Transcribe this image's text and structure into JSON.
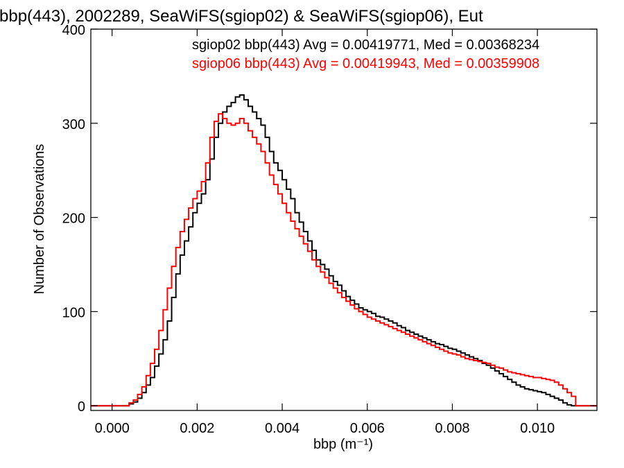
{
  "chart_data": {
    "type": "line",
    "title": "bbp(443), 2002289, SeaWiFS(sgiop02) & SeaWiFS(sgiop06), Eut",
    "xlabel": "bbp (m⁻¹)",
    "ylabel": "Number of Observations",
    "xlim": [
      -0.0005,
      0.0114
    ],
    "ylim": [
      -5,
      400
    ],
    "x_ticks": [
      0.0,
      0.002,
      0.004,
      0.006,
      0.008,
      0.01
    ],
    "x_tick_labels": [
      "0.000",
      "0.002",
      "0.004",
      "0.006",
      "0.008",
      "0.010"
    ],
    "y_ticks": [
      0,
      100,
      200,
      300,
      400
    ],
    "y_tick_labels": [
      "0",
      "100",
      "200",
      "300",
      "400"
    ],
    "grid": false,
    "annotations": [
      {
        "text": "sgiop02 bbp(443) Avg = 0.00419771, Med = 0.00368234",
        "color": "#000000"
      },
      {
        "text": "sgiop06 bbp(443) Avg = 0.00419943, Med = 0.00359908",
        "color": "#ff0000"
      }
    ],
    "series": [
      {
        "color": "#000000",
        "step": true,
        "points": [
          [
            -0.0005,
            0
          ],
          [
            0.0003,
            0
          ],
          [
            0.0004,
            2
          ],
          [
            0.0005,
            4
          ],
          [
            0.0006,
            8
          ],
          [
            0.0007,
            14
          ],
          [
            0.0008,
            22
          ],
          [
            0.0009,
            30
          ],
          [
            0.001,
            42
          ],
          [
            0.0011,
            55
          ],
          [
            0.0012,
            70
          ],
          [
            0.0013,
            90
          ],
          [
            0.0014,
            115
          ],
          [
            0.0015,
            140
          ],
          [
            0.0016,
            160
          ],
          [
            0.0017,
            175
          ],
          [
            0.0018,
            190
          ],
          [
            0.0019,
            205
          ],
          [
            0.002,
            215
          ],
          [
            0.0021,
            225
          ],
          [
            0.0022,
            240
          ],
          [
            0.0023,
            262
          ],
          [
            0.0024,
            285
          ],
          [
            0.0025,
            300
          ],
          [
            0.0026,
            312
          ],
          [
            0.0027,
            318
          ],
          [
            0.0028,
            322
          ],
          [
            0.0029,
            328
          ],
          [
            0.003,
            330
          ],
          [
            0.0031,
            325
          ],
          [
            0.0032,
            318
          ],
          [
            0.0033,
            312
          ],
          [
            0.0034,
            305
          ],
          [
            0.0035,
            298
          ],
          [
            0.0036,
            285
          ],
          [
            0.0037,
            270
          ],
          [
            0.0038,
            258
          ],
          [
            0.0039,
            250
          ],
          [
            0.004,
            240
          ],
          [
            0.0041,
            230
          ],
          [
            0.0042,
            220
          ],
          [
            0.0043,
            205
          ],
          [
            0.0044,
            195
          ],
          [
            0.0045,
            185
          ],
          [
            0.0046,
            175
          ],
          [
            0.0047,
            165
          ],
          [
            0.0048,
            155
          ],
          [
            0.0049,
            150
          ],
          [
            0.005,
            145
          ],
          [
            0.0051,
            138
          ],
          [
            0.0052,
            132
          ],
          [
            0.0053,
            128
          ],
          [
            0.0054,
            122
          ],
          [
            0.0055,
            116
          ],
          [
            0.0056,
            112
          ],
          [
            0.0057,
            108
          ],
          [
            0.0058,
            104
          ],
          [
            0.0059,
            102
          ],
          [
            0.006,
            100
          ],
          [
            0.0061,
            98
          ],
          [
            0.0062,
            95
          ],
          [
            0.0063,
            94
          ],
          [
            0.0064,
            92
          ],
          [
            0.0065,
            90
          ],
          [
            0.0066,
            88
          ],
          [
            0.0067,
            85
          ],
          [
            0.0068,
            83
          ],
          [
            0.0069,
            80
          ],
          [
            0.007,
            78
          ],
          [
            0.0071,
            76
          ],
          [
            0.0072,
            74
          ],
          [
            0.0073,
            72
          ],
          [
            0.0074,
            70
          ],
          [
            0.0075,
            68
          ],
          [
            0.0076,
            66
          ],
          [
            0.0077,
            65
          ],
          [
            0.0078,
            63
          ],
          [
            0.0079,
            61
          ],
          [
            0.008,
            60
          ],
          [
            0.0081,
            58
          ],
          [
            0.0082,
            56
          ],
          [
            0.0083,
            54
          ],
          [
            0.0084,
            52
          ],
          [
            0.0085,
            50
          ],
          [
            0.0086,
            48
          ],
          [
            0.0087,
            45
          ],
          [
            0.0088,
            43
          ],
          [
            0.0089,
            40
          ],
          [
            0.009,
            37
          ],
          [
            0.0091,
            34
          ],
          [
            0.0092,
            31
          ],
          [
            0.0093,
            28
          ],
          [
            0.0094,
            25
          ],
          [
            0.0095,
            22
          ],
          [
            0.0096,
            20
          ],
          [
            0.0097,
            18
          ],
          [
            0.0098,
            17
          ],
          [
            0.0099,
            16
          ],
          [
            0.01,
            15
          ],
          [
            0.0101,
            14
          ],
          [
            0.0102,
            12
          ],
          [
            0.0103,
            10
          ],
          [
            0.0104,
            8
          ],
          [
            0.0105,
            6
          ],
          [
            0.0106,
            3
          ],
          [
            0.0107,
            1
          ],
          [
            0.0108,
            0
          ],
          [
            0.0114,
            0
          ]
        ]
      },
      {
        "color": "#ff0000",
        "step": true,
        "points": [
          [
            -0.0005,
            0
          ],
          [
            0.0003,
            0
          ],
          [
            0.0004,
            3
          ],
          [
            0.0005,
            6
          ],
          [
            0.0006,
            12
          ],
          [
            0.0007,
            20
          ],
          [
            0.0008,
            32
          ],
          [
            0.0009,
            45
          ],
          [
            0.001,
            60
          ],
          [
            0.0011,
            80
          ],
          [
            0.0012,
            102
          ],
          [
            0.0013,
            125
          ],
          [
            0.0014,
            148
          ],
          [
            0.0015,
            168
          ],
          [
            0.0016,
            185
          ],
          [
            0.0017,
            198
          ],
          [
            0.0018,
            210
          ],
          [
            0.0019,
            220
          ],
          [
            0.002,
            228
          ],
          [
            0.0021,
            238
          ],
          [
            0.0022,
            258
          ],
          [
            0.0023,
            285
          ],
          [
            0.0024,
            302
          ],
          [
            0.0025,
            310
          ],
          [
            0.0026,
            305
          ],
          [
            0.0027,
            300
          ],
          [
            0.0028,
            298
          ],
          [
            0.0029,
            300
          ],
          [
            0.003,
            305
          ],
          [
            0.0031,
            300
          ],
          [
            0.0032,
            292
          ],
          [
            0.0033,
            285
          ],
          [
            0.0034,
            278
          ],
          [
            0.0035,
            270
          ],
          [
            0.0036,
            258
          ],
          [
            0.0037,
            245
          ],
          [
            0.0038,
            235
          ],
          [
            0.0039,
            225
          ],
          [
            0.004,
            215
          ],
          [
            0.0041,
            205
          ],
          [
            0.0042,
            196
          ],
          [
            0.0043,
            188
          ],
          [
            0.0044,
            180
          ],
          [
            0.0045,
            172
          ],
          [
            0.0046,
            164
          ],
          [
            0.0047,
            155
          ],
          [
            0.0048,
            148
          ],
          [
            0.0049,
            142
          ],
          [
            0.005,
            136
          ],
          [
            0.0051,
            130
          ],
          [
            0.0052,
            125
          ],
          [
            0.0053,
            120
          ],
          [
            0.0054,
            115
          ],
          [
            0.0055,
            111
          ],
          [
            0.0056,
            107
          ],
          [
            0.0057,
            103
          ],
          [
            0.0058,
            100
          ],
          [
            0.0059,
            97
          ],
          [
            0.006,
            94
          ],
          [
            0.0061,
            92
          ],
          [
            0.0062,
            90
          ],
          [
            0.0063,
            88
          ],
          [
            0.0064,
            86
          ],
          [
            0.0065,
            84
          ],
          [
            0.0066,
            82
          ],
          [
            0.0067,
            80
          ],
          [
            0.0068,
            78
          ],
          [
            0.0069,
            76
          ],
          [
            0.007,
            74
          ],
          [
            0.0071,
            72
          ],
          [
            0.0072,
            70
          ],
          [
            0.0073,
            68
          ],
          [
            0.0074,
            66
          ],
          [
            0.0075,
            64
          ],
          [
            0.0076,
            62
          ],
          [
            0.0077,
            60
          ],
          [
            0.0078,
            58
          ],
          [
            0.0079,
            56
          ],
          [
            0.008,
            55
          ],
          [
            0.0081,
            54
          ],
          [
            0.0082,
            52
          ],
          [
            0.0083,
            50
          ],
          [
            0.0084,
            49
          ],
          [
            0.0085,
            48
          ],
          [
            0.0086,
            47
          ],
          [
            0.0087,
            46
          ],
          [
            0.0088,
            45
          ],
          [
            0.0089,
            43
          ],
          [
            0.009,
            41
          ],
          [
            0.0091,
            40
          ],
          [
            0.0092,
            38
          ],
          [
            0.0093,
            36
          ],
          [
            0.0094,
            35
          ],
          [
            0.0095,
            34
          ],
          [
            0.0096,
            33
          ],
          [
            0.0097,
            32
          ],
          [
            0.0098,
            31
          ],
          [
            0.0099,
            30
          ],
          [
            0.01,
            30
          ],
          [
            0.0101,
            29
          ],
          [
            0.0102,
            28
          ],
          [
            0.0103,
            27
          ],
          [
            0.0104,
            25
          ],
          [
            0.0105,
            22
          ],
          [
            0.0106,
            18
          ],
          [
            0.0107,
            14
          ],
          [
            0.0108,
            10
          ],
          [
            0.0109,
            0
          ],
          [
            0.0114,
            0
          ]
        ]
      }
    ]
  }
}
